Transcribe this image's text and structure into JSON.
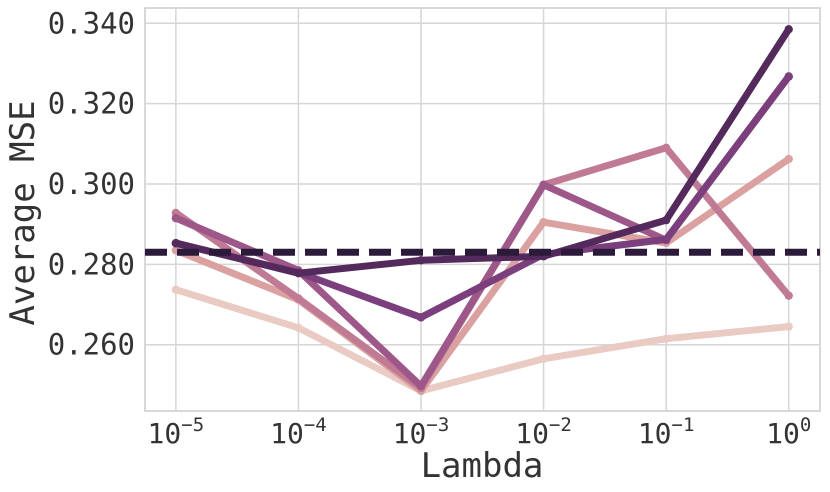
{
  "chart_data": {
    "type": "line",
    "title": "",
    "xlabel": "Lambda",
    "ylabel": "Average MSE",
    "x_scale": "log",
    "x": [
      1e-05,
      0.0001,
      0.001,
      0.01,
      0.1,
      1
    ],
    "x_tick_labels": [
      {
        "base": "10",
        "exp": "−5"
      },
      {
        "base": "10",
        "exp": "−4"
      },
      {
        "base": "10",
        "exp": "−3"
      },
      {
        "base": "10",
        "exp": "−2"
      },
      {
        "base": "10",
        "exp": "−1"
      },
      {
        "base": "10",
        "exp": "0"
      }
    ],
    "y_tick_labels": [
      "0.260",
      "0.280",
      "0.300",
      "0.320",
      "0.340"
    ],
    "y_ticks": [
      0.26,
      0.28,
      0.3,
      0.32,
      0.34
    ],
    "xlim": [
      5.6e-06,
      1.8
    ],
    "ylim": [
      0.2435,
      0.3438
    ],
    "grid": true,
    "legend": false,
    "series": [
      {
        "color": "#eacbc4",
        "values": [
          0.2737,
          0.2642,
          0.2485,
          0.2565,
          0.2615,
          0.2645
        ]
      },
      {
        "color": "#dba1a1",
        "values": [
          0.2835,
          0.2712,
          0.2485,
          0.2905,
          0.2853,
          0.3062
        ]
      },
      {
        "color": "#c07a94",
        "values": [
          0.2928,
          0.2715,
          0.2492,
          0.2998,
          0.309,
          0.2722
        ]
      },
      {
        "color": "#9e5789",
        "values": [
          0.2915,
          0.2785,
          0.2497,
          0.2998,
          0.286,
          0.3268
        ]
      },
      {
        "color": "#7b3f7e",
        "values": [
          0.2852,
          0.278,
          0.2668,
          0.2825,
          0.2862,
          0.3267
        ]
      },
      {
        "color": "#542a5d",
        "values": [
          0.2853,
          0.2778,
          0.281,
          0.282,
          0.291,
          0.3385
        ]
      }
    ],
    "reference_line": {
      "y": 0.283,
      "style": "dashed",
      "color": "#2b1a3a"
    }
  }
}
